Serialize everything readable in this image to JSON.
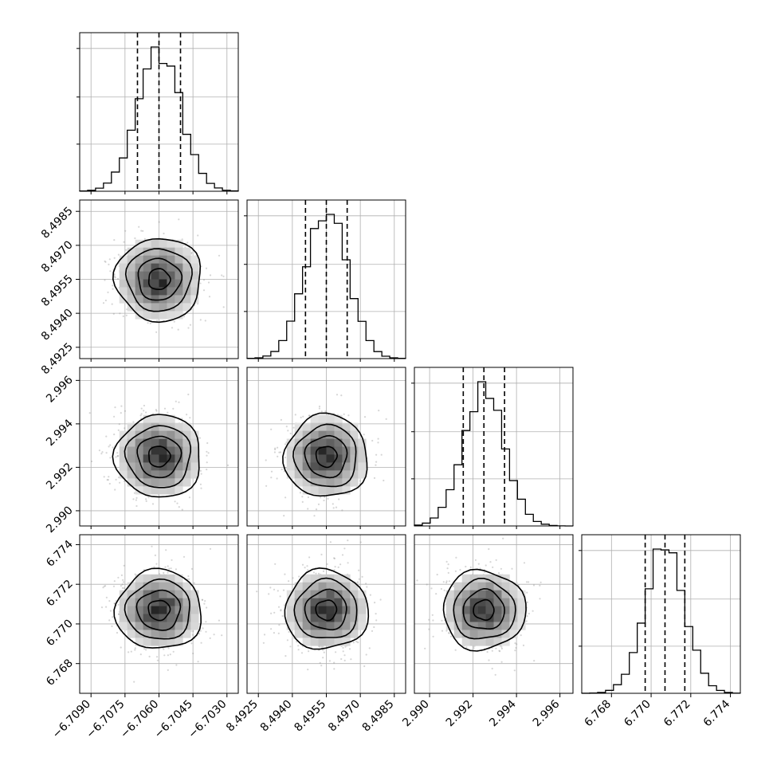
{
  "chart_data": {
    "type": "corner",
    "n_params": 4,
    "grid": true,
    "colors": {
      "line": "#000000",
      "points": "#8a8a8a",
      "grid": "#b0b0b0"
    },
    "params": [
      {
        "mean": -6.706,
        "sigma": 0.00095,
        "range": [
          -6.7095,
          -6.7025
        ],
        "quantiles": [
          -6.70695,
          -6.706,
          -6.70505
        ],
        "ticks": [
          -6.709,
          -6.7075,
          -6.706,
          -6.7045,
          -6.703
        ],
        "tick_labels": [
          "−6.7090",
          "−6.7075",
          "−6.7060",
          "−6.7045",
          "−6.7030"
        ]
      },
      {
        "mean": 8.4955,
        "sigma": 0.00092,
        "range": [
          8.492,
          8.499
        ],
        "quantiles": [
          8.49458,
          8.4955,
          8.49642
        ],
        "ticks": [
          8.4925,
          8.494,
          8.4955,
          8.497,
          8.4985
        ],
        "tick_labels": [
          "8.4925",
          "8.4940",
          "8.4955",
          "8.4970",
          "8.4985"
        ]
      },
      {
        "mean": 2.9925,
        "sigma": 0.00095,
        "range": [
          2.9893,
          2.9966
        ],
        "quantiles": [
          2.99155,
          2.9925,
          2.99345
        ],
        "ticks": [
          2.99,
          2.992,
          2.994,
          2.996
        ],
        "tick_labels": [
          "2.990",
          "2.992",
          "2.994",
          "2.996"
        ]
      },
      {
        "mean": 6.7707,
        "sigma": 0.001,
        "range": [
          6.7665,
          6.7745
        ],
        "quantiles": [
          6.7697,
          6.7707,
          6.7717
        ],
        "ticks": [
          6.768,
          6.77,
          6.772,
          6.774
        ],
        "tick_labels": [
          "6.768",
          "6.770",
          "6.772",
          "6.774"
        ]
      }
    ],
    "hist_bins": 20,
    "contour_levels_sigma": [
      0.5,
      1.0,
      1.5,
      2.0
    ]
  }
}
